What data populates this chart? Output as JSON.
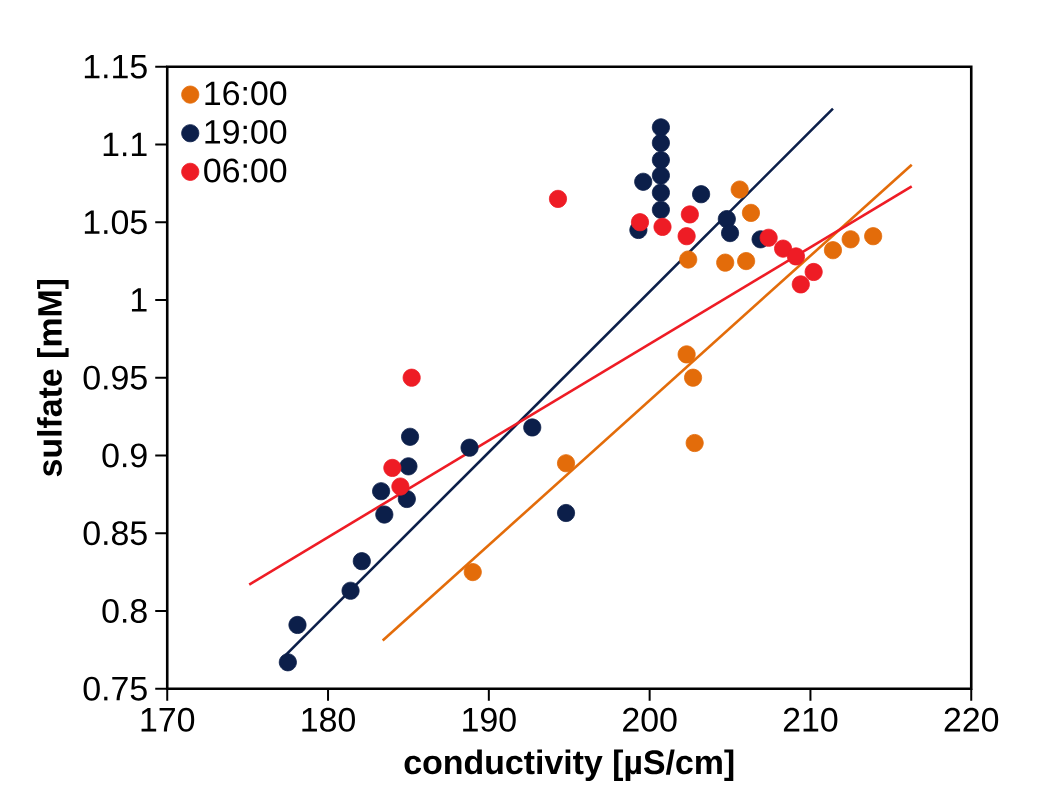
{
  "chart_data": {
    "type": "scatter",
    "xlabel": "conductivity [µS/cm]",
    "ylabel": "sulfate [mM]",
    "xlim": [
      170,
      220
    ],
    "ylim": [
      0.75,
      1.15
    ],
    "xticks": [
      170,
      180,
      190,
      200,
      210,
      220
    ],
    "yticks": [
      0.75,
      0.8,
      0.85,
      0.9,
      0.95,
      1,
      1.05,
      1.1,
      1.15
    ],
    "grid": false,
    "legend": "top left",
    "marker": "circle",
    "series": [
      {
        "name": "16:00",
        "color": "#e36c0a",
        "x": [
          189.0,
          194.8,
          202.8,
          202.7,
          202.3,
          202.4,
          204.7,
          206.0,
          205.6,
          206.3,
          211.4,
          212.5,
          213.9
        ],
        "values": [
          0.825,
          0.895,
          0.908,
          0.95,
          0.965,
          1.026,
          1.024,
          1.025,
          1.071,
          1.056,
          1.032,
          1.039,
          1.041
        ]
      },
      {
        "name": "19:00",
        "color": "#0c1f4a",
        "x": [
          177.5,
          178.1,
          181.4,
          182.1,
          183.5,
          183.3,
          184.9,
          185.0,
          185.1,
          188.8,
          192.7,
          194.8,
          199.3,
          199.6,
          200.7,
          200.7,
          200.7,
          200.7,
          200.7,
          200.7,
          203.2,
          204.8,
          205.0,
          206.9
        ],
        "values": [
          0.767,
          0.791,
          0.813,
          0.832,
          0.862,
          0.877,
          0.872,
          0.893,
          0.912,
          0.905,
          0.918,
          0.863,
          1.045,
          1.076,
          1.111,
          1.101,
          1.09,
          1.08,
          1.069,
          1.058,
          1.068,
          1.052,
          1.043,
          1.039
        ]
      },
      {
        "name": "06:00",
        "color": "#ee1c25",
        "x": [
          184.0,
          184.5,
          185.2,
          194.3,
          199.4,
          200.8,
          202.5,
          202.3,
          207.4,
          208.3,
          209.1,
          210.2,
          209.4
        ],
        "values": [
          0.892,
          0.88,
          0.95,
          1.065,
          1.05,
          1.047,
          1.055,
          1.041,
          1.04,
          1.033,
          1.028,
          1.018,
          1.01
        ]
      },
      {
        "type": "line",
        "marker": "none",
        "color": "#e36c0a",
        "x": [
          183.4,
          216.3
        ],
        "values": [
          0.781,
          1.087
        ]
      },
      {
        "type": "line",
        "marker": "none",
        "color": "#0c1f4a",
        "x": [
          177.3,
          211.4
        ],
        "values": [
          0.771,
          1.123
        ]
      },
      {
        "type": "line",
        "marker": "none",
        "color": "#ee1c25",
        "x": [
          175.1,
          216.3
        ],
        "values": [
          0.817,
          1.073
        ]
      }
    ]
  }
}
